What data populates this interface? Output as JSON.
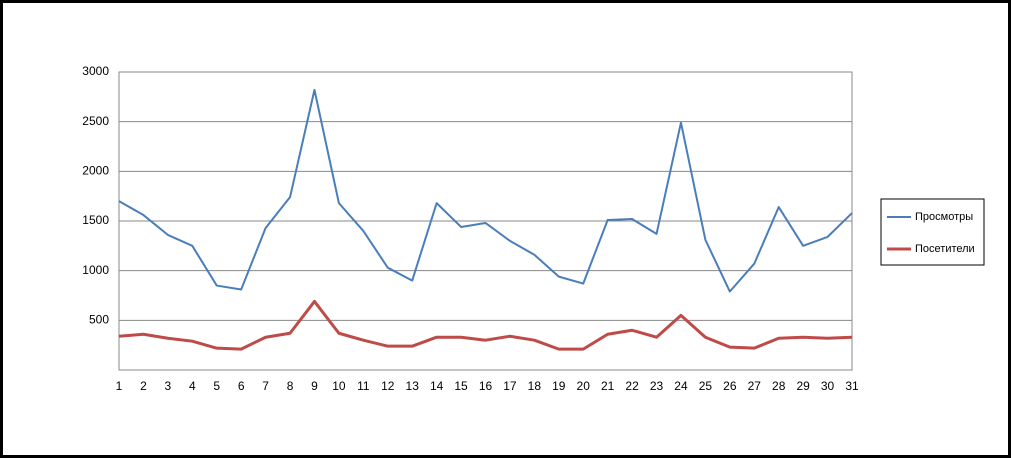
{
  "chart_data": {
    "type": "line",
    "categories": [
      "1",
      "2",
      "3",
      "4",
      "5",
      "6",
      "7",
      "8",
      "9",
      "10",
      "11",
      "12",
      "13",
      "14",
      "15",
      "16",
      "17",
      "18",
      "19",
      "20",
      "21",
      "22",
      "23",
      "24",
      "25",
      "26",
      "27",
      "28",
      "29",
      "30",
      "31"
    ],
    "series": [
      {
        "name": "Просмотры",
        "color": "#4a7ebb",
        "values": [
          1700,
          1560,
          1360,
          1250,
          850,
          810,
          1430,
          1740,
          2820,
          1680,
          1400,
          1030,
          900,
          1680,
          1440,
          1480,
          1300,
          1160,
          940,
          870,
          1510,
          1520,
          1370,
          2490,
          1310,
          790,
          1070,
          1640,
          1250,
          1340,
          1580
        ]
      },
      {
        "name": "Посетители",
        "color": "#be4b48",
        "values": [
          340,
          360,
          320,
          290,
          220,
          210,
          330,
          370,
          690,
          370,
          300,
          240,
          240,
          330,
          330,
          300,
          340,
          300,
          210,
          210,
          360,
          400,
          330,
          550,
          330,
          230,
          220,
          320,
          330,
          320,
          330
        ]
      }
    ],
    "ylim": [
      0,
      3000
    ],
    "yticks": [
      500,
      1000,
      1500,
      2000,
      2500,
      3000
    ],
    "grid": true,
    "legend": "right"
  }
}
